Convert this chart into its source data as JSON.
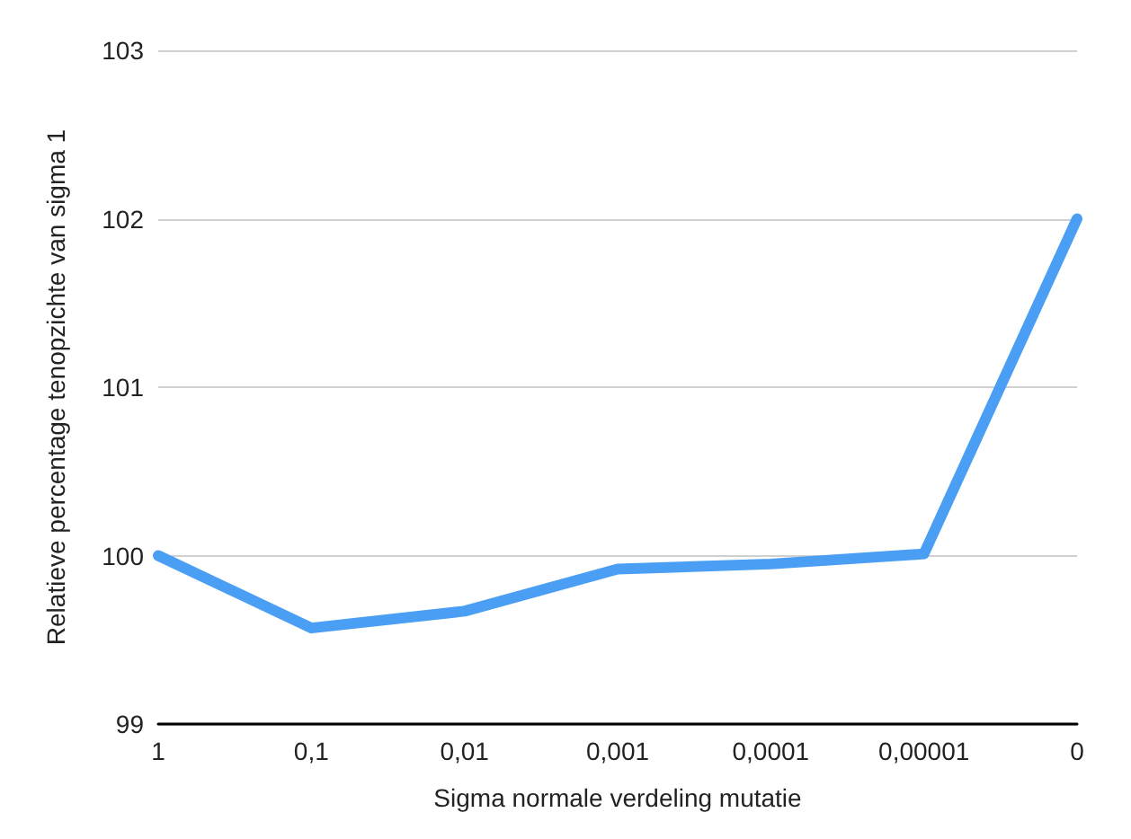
{
  "chart_data": {
    "type": "line",
    "xlabel": "Sigma normale verdeling mutatie",
    "ylabel": "Relatieve percentage tenopzichte van sigma 1",
    "categories": [
      "1",
      "0,1",
      "0,01",
      "0,001",
      "0,0001",
      "0,00001",
      "0"
    ],
    "series": [
      {
        "color": "#4a9ff5",
        "values": [
          100,
          99.57,
          99.67,
          99.92,
          99.95,
          100.01,
          102
        ]
      }
    ],
    "ylim": [
      99,
      103
    ],
    "yticks": [
      99,
      100,
      101,
      102,
      103
    ],
    "grid": "y",
    "marker": "none",
    "line_style": "solid"
  }
}
